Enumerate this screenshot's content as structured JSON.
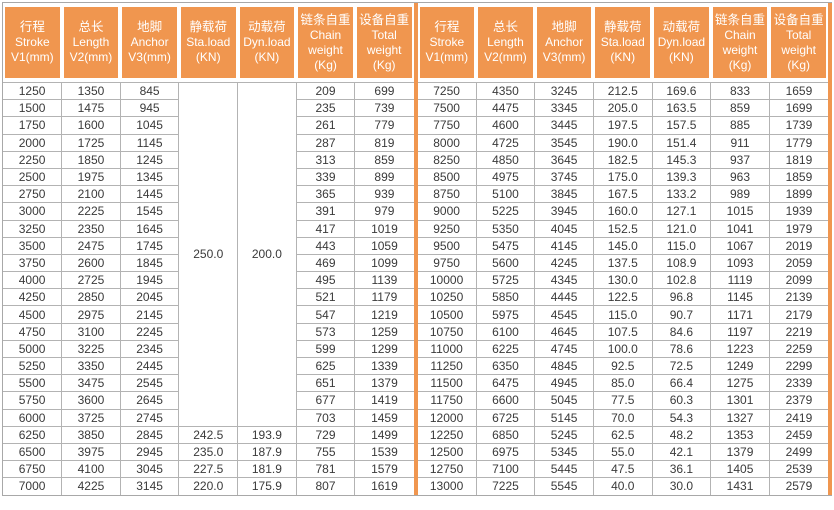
{
  "colors": {
    "header_bg": "#F0964F",
    "divider_stripe": "#F0964F",
    "cell_border": "#B3B3B3",
    "outer_border": "#A8A8A8",
    "data_text": "#3A3A3A",
    "header_text": "#FFFFFF"
  },
  "table": {
    "columns": [
      {
        "key": "stroke",
        "lines": [
          "行程",
          "Stroke",
          "V1(mm)"
        ]
      },
      {
        "key": "length",
        "lines": [
          "总长",
          "Length",
          "V2(mm)"
        ]
      },
      {
        "key": "anchor",
        "lines": [
          "地脚",
          "Anchor",
          "V3(mm)"
        ]
      },
      {
        "key": "sta-load",
        "lines": [
          "静载荷",
          "Sta.load",
          "(KN)"
        ]
      },
      {
        "key": "dyn-load",
        "lines": [
          "动载荷",
          "Dyn.load",
          "(KN)"
        ]
      },
      {
        "key": "chain-weight",
        "lines": [
          "链条自重",
          "Chain",
          "weight",
          "(Kg)"
        ]
      },
      {
        "key": "total-weight",
        "lines": [
          "设备自重",
          "Total",
          "weight",
          "(Kg)"
        ]
      }
    ],
    "left": {
      "merged": {
        "span_rows": 20,
        "sta_load": "250.0",
        "dyn_load": "200.0"
      },
      "rows": [
        [
          "1250",
          "1350",
          "845",
          null,
          null,
          "209",
          "699"
        ],
        [
          "1500",
          "1475",
          "945",
          null,
          null,
          "235",
          "739"
        ],
        [
          "1750",
          "1600",
          "1045",
          null,
          null,
          "261",
          "779"
        ],
        [
          "2000",
          "1725",
          "1145",
          null,
          null,
          "287",
          "819"
        ],
        [
          "2250",
          "1850",
          "1245",
          null,
          null,
          "313",
          "859"
        ],
        [
          "2500",
          "1975",
          "1345",
          null,
          null,
          "339",
          "899"
        ],
        [
          "2750",
          "2100",
          "1445",
          null,
          null,
          "365",
          "939"
        ],
        [
          "3000",
          "2225",
          "1545",
          null,
          null,
          "391",
          "979"
        ],
        [
          "3250",
          "2350",
          "1645",
          null,
          null,
          "417",
          "1019"
        ],
        [
          "3500",
          "2475",
          "1745",
          null,
          null,
          "443",
          "1059"
        ],
        [
          "3750",
          "2600",
          "1845",
          null,
          null,
          "469",
          "1099"
        ],
        [
          "4000",
          "2725",
          "1945",
          null,
          null,
          "495",
          "1139"
        ],
        [
          "4250",
          "2850",
          "2045",
          null,
          null,
          "521",
          "1179"
        ],
        [
          "4500",
          "2975",
          "2145",
          null,
          null,
          "547",
          "1219"
        ],
        [
          "4750",
          "3100",
          "2245",
          null,
          null,
          "573",
          "1259"
        ],
        [
          "5000",
          "3225",
          "2345",
          null,
          null,
          "599",
          "1299"
        ],
        [
          "5250",
          "3350",
          "2445",
          null,
          null,
          "625",
          "1339"
        ],
        [
          "5500",
          "3475",
          "2545",
          null,
          null,
          "651",
          "1379"
        ],
        [
          "5750",
          "3600",
          "2645",
          null,
          null,
          "677",
          "1419"
        ],
        [
          "6000",
          "3725",
          "2745",
          null,
          null,
          "703",
          "1459"
        ],
        [
          "6250",
          "3850",
          "2845",
          "242.5",
          "193.9",
          "729",
          "1499"
        ],
        [
          "6500",
          "3975",
          "2945",
          "235.0",
          "187.9",
          "755",
          "1539"
        ],
        [
          "6750",
          "4100",
          "3045",
          "227.5",
          "181.9",
          "781",
          "1579"
        ],
        [
          "7000",
          "4225",
          "3145",
          "220.0",
          "175.9",
          "807",
          "1619"
        ]
      ]
    },
    "right": {
      "rows": [
        [
          "7250",
          "4350",
          "3245",
          "212.5",
          "169.6",
          "833",
          "1659"
        ],
        [
          "7500",
          "4475",
          "3345",
          "205.0",
          "163.5",
          "859",
          "1699"
        ],
        [
          "7750",
          "4600",
          "3445",
          "197.5",
          "157.5",
          "885",
          "1739"
        ],
        [
          "8000",
          "4725",
          "3545",
          "190.0",
          "151.4",
          "911",
          "1779"
        ],
        [
          "8250",
          "4850",
          "3645",
          "182.5",
          "145.3",
          "937",
          "1819"
        ],
        [
          "8500",
          "4975",
          "3745",
          "175.0",
          "139.3",
          "963",
          "1859"
        ],
        [
          "8750",
          "5100",
          "3845",
          "167.5",
          "133.2",
          "989",
          "1899"
        ],
        [
          "9000",
          "5225",
          "3945",
          "160.0",
          "127.1",
          "1015",
          "1939"
        ],
        [
          "9250",
          "5350",
          "4045",
          "152.5",
          "121.0",
          "1041",
          "1979"
        ],
        [
          "9500",
          "5475",
          "4145",
          "145.0",
          "115.0",
          "1067",
          "2019"
        ],
        [
          "9750",
          "5600",
          "4245",
          "137.5",
          "108.9",
          "1093",
          "2059"
        ],
        [
          "10000",
          "5725",
          "4345",
          "130.0",
          "102.8",
          "1119",
          "2099"
        ],
        [
          "10250",
          "5850",
          "4445",
          "122.5",
          "96.8",
          "1145",
          "2139"
        ],
        [
          "10500",
          "5975",
          "4545",
          "115.0",
          "90.7",
          "1171",
          "2179"
        ],
        [
          "10750",
          "6100",
          "4645",
          "107.5",
          "84.6",
          "1197",
          "2219"
        ],
        [
          "11000",
          "6225",
          "4745",
          "100.0",
          "78.6",
          "1223",
          "2259"
        ],
        [
          "11250",
          "6350",
          "4845",
          "92.5",
          "72.5",
          "1249",
          "2299"
        ],
        [
          "11500",
          "6475",
          "4945",
          "85.0",
          "66.4",
          "1275",
          "2339"
        ],
        [
          "11750",
          "6600",
          "5045",
          "77.5",
          "60.3",
          "1301",
          "2379"
        ],
        [
          "12000",
          "6725",
          "5145",
          "70.0",
          "54.3",
          "1327",
          "2419"
        ],
        [
          "12250",
          "6850",
          "5245",
          "62.5",
          "48.2",
          "1353",
          "2459"
        ],
        [
          "12500",
          "6975",
          "5345",
          "55.0",
          "42.1",
          "1379",
          "2499"
        ],
        [
          "12750",
          "7100",
          "5445",
          "47.5",
          "36.1",
          "1405",
          "2539"
        ],
        [
          "13000",
          "7225",
          "5545",
          "40.0",
          "30.0",
          "1431",
          "2579"
        ]
      ]
    }
  }
}
